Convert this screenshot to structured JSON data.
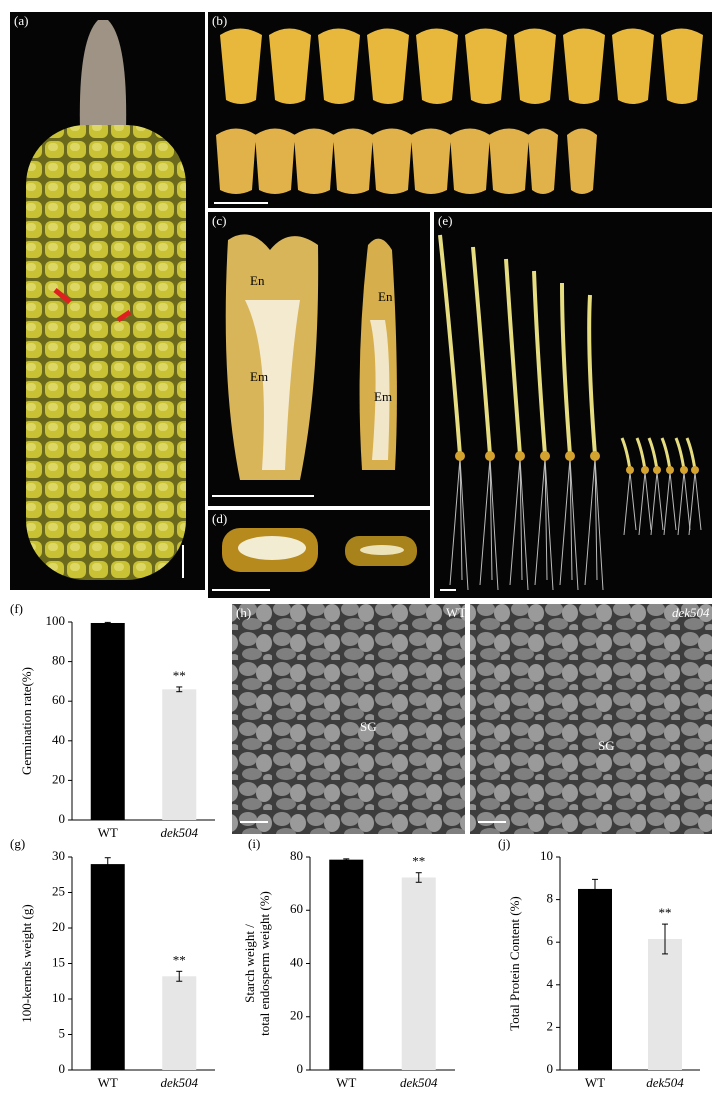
{
  "photos": {
    "a": {
      "label": "(a)"
    },
    "b": {
      "label": "(b)"
    },
    "c": {
      "label": "(c)",
      "wt_endosperm": "En",
      "wt_embryo": "Em",
      "mutant_endosperm": "En",
      "mutant_embryo": "Em"
    },
    "d": {
      "label": "(d)"
    },
    "e": {
      "label": "(e)"
    },
    "h": {
      "label": "(h)",
      "wt": "WT",
      "mutant": "dek504",
      "wt_starch": "SG",
      "mutant_starch": "SG"
    }
  },
  "chart_data": [
    {
      "type": "bar",
      "panel_label": "(f)",
      "y_label": [
        "Germination rate(%)"
      ],
      "categories": [
        "WT",
        "dek504"
      ],
      "values": [
        99.5,
        66
      ],
      "errors": [
        0.3,
        1.2
      ],
      "colors": [
        "#000000",
        "#e6e6e6"
      ],
      "annotation": "**",
      "ylim": [
        0,
        100
      ],
      "yticks": [
        0,
        20,
        40,
        60,
        80,
        100
      ]
    },
    {
      "type": "bar",
      "panel_label": "(g)",
      "y_label": [
        "100-kernels weight (g)"
      ],
      "categories": [
        "WT",
        "dek504"
      ],
      "values": [
        29,
        13.2
      ],
      "errors": [
        0.9,
        0.7
      ],
      "colors": [
        "#000000",
        "#e6e6e6"
      ],
      "annotation": "**",
      "ylim": [
        0,
        30
      ],
      "yticks": [
        0,
        5,
        10,
        15,
        20,
        25,
        30
      ]
    },
    {
      "type": "bar",
      "panel_label": "(i)",
      "y_label": [
        "Starch weight /",
        "total endosperm weight (%)"
      ],
      "categories": [
        "WT",
        "dek504"
      ],
      "values": [
        79,
        72.3
      ],
      "errors": [
        0.3,
        1.8
      ],
      "colors": [
        "#000000",
        "#e6e6e6"
      ],
      "annotation": "**",
      "ylim": [
        0,
        80
      ],
      "yticks": [
        0,
        20,
        40,
        60,
        80
      ]
    },
    {
      "type": "bar",
      "panel_label": "(j)",
      "y_label": [
        "Total Protein Content (%)"
      ],
      "categories": [
        "WT",
        "dek504"
      ],
      "values": [
        8.5,
        6.15
      ],
      "errors": [
        0.45,
        0.7
      ],
      "colors": [
        "#000000",
        "#e6e6e6"
      ],
      "annotation": "**",
      "ylim": [
        0,
        10
      ],
      "yticks": [
        0,
        2,
        4,
        6,
        8,
        10
      ]
    }
  ]
}
